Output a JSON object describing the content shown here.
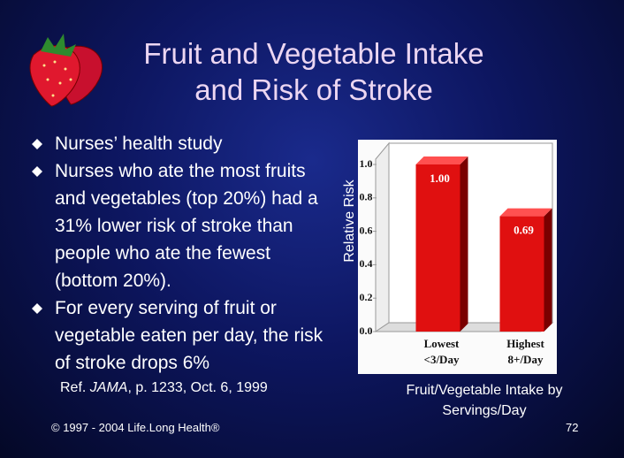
{
  "title": [
    "Fruit and Vegetable Intake",
    "and Risk of Stroke"
  ],
  "bullets": [
    "Nurses’ health study",
    "Nurses who ate the most fruits and vegetables (top 20%) had a 31% lower risk of stroke than people who ate the fewest (bottom 20%).",
    "For every serving of fruit or vegetable eaten per day, the risk of stroke drops 6%"
  ],
  "reference": [
    "Ref. ",
    "JAMA",
    ", p. 1233, Oct. 6, 1999"
  ],
  "copyright": "© 1997 - 2004 Life.Long Health®",
  "page_number": "72",
  "chart_data": {
    "type": "bar3d",
    "y_label": "Relative Risk",
    "x_label": "Fruit/Vegetable Intake by Servings/Day",
    "categories": [
      [
        "Lowest",
        "<3/Day"
      ],
      [
        "Highest",
        "8+/Day"
      ]
    ],
    "values": [
      1.0,
      0.69
    ],
    "value_labels": [
      "1.00",
      "0.69"
    ],
    "color": "#e01010",
    "ylim": [
      0,
      1
    ],
    "yticks": [
      {
        "value": 0.0,
        "label": "0.0"
      },
      0.2,
      0.4,
      0.6,
      0.8,
      {
        "value": 1.0,
        "label": "1.0"
      }
    ],
    "grid": false
  }
}
